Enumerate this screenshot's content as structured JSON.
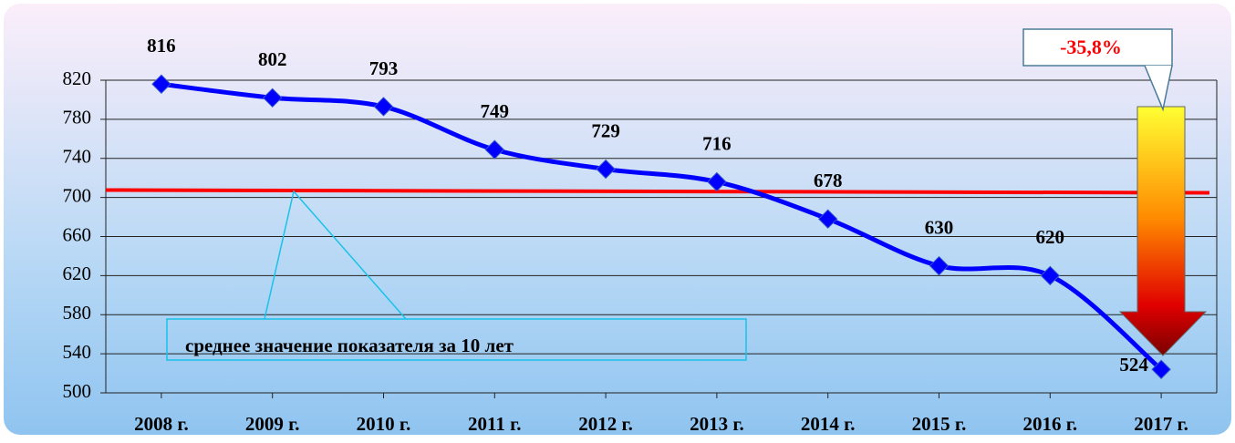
{
  "chart_data": {
    "type": "line",
    "categories": [
      "2008 г.",
      "2009 г.",
      "2010 г.",
      "2011 г.",
      "2012 г.",
      "2013 г.",
      "2014 г.",
      "2015 г.",
      "2016 г.",
      "2017 г."
    ],
    "series": [
      {
        "color": "#0000ff",
        "values": [
          816,
          802,
          793,
          749,
          729,
          716,
          678,
          630,
          620,
          524
        ]
      }
    ],
    "ylim": [
      500,
      820
    ],
    "yticks": [
      500,
      540,
      580,
      620,
      660,
      700,
      740,
      780,
      820
    ],
    "grid": true,
    "reference_line": {
      "value": 705.7,
      "color": "#ff0000",
      "label": "среднее значение показателя за 10 лет"
    },
    "annotation": "-35,8%"
  }
}
